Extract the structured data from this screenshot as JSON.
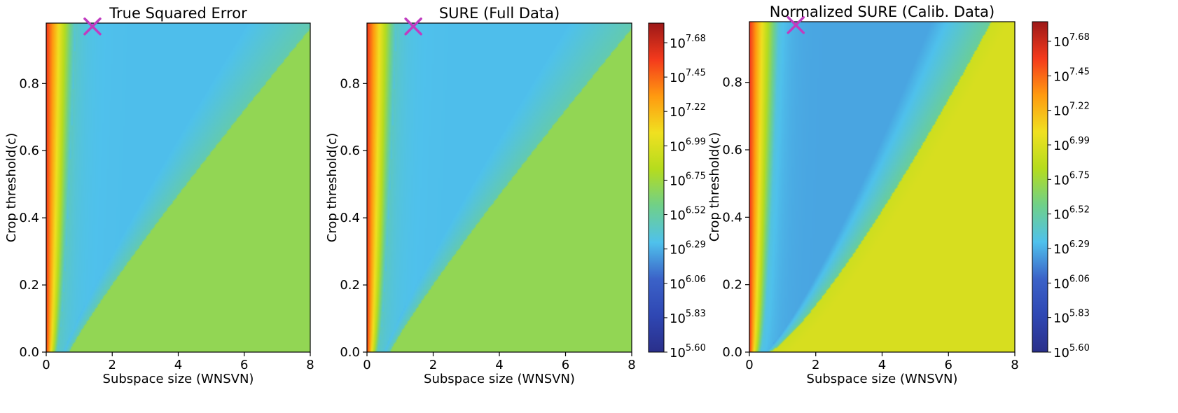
{
  "chart_data": [
    {
      "type": "heatmap",
      "title": "True Squared Error",
      "xlabel": "Subspace size (WNSVN)",
      "ylabel": "Crop threshold(c)",
      "xlim": [
        0,
        8
      ],
      "ylim": [
        0,
        0.98
      ],
      "x_ticks": [
        "0",
        "2",
        "4",
        "6",
        "8"
      ],
      "y_ticks": [
        "0.0",
        "0.2",
        "0.4",
        "0.6",
        "0.8"
      ],
      "colorbar": false,
      "marker": {
        "symbol": "x",
        "x": 1.4,
        "y": 0.97,
        "color": "#c03cc0"
      },
      "field": {
        "red_edge": 0.9,
        "blue_band": 0.33,
        "ridge_base": 0.7,
        "ridge_exp": 1.1,
        "ridge_end": 8.3,
        "far_level": 0.5,
        "far_cap": 0.5
      }
    },
    {
      "type": "heatmap",
      "title": "SURE (Full Data)",
      "xlabel": "Subspace size (WNSVN)",
      "ylabel": "Crop threshold(c)",
      "xlim": [
        0,
        8
      ],
      "ylim": [
        0,
        0.98
      ],
      "x_ticks": [
        "0",
        "2",
        "4",
        "6",
        "8"
      ],
      "y_ticks": [
        "0.0",
        "0.2",
        "0.4",
        "0.6",
        "0.8"
      ],
      "colorbar": true,
      "marker": {
        "symbol": "x",
        "x": 1.4,
        "y": 0.97,
        "color": "#c03cc0"
      },
      "field": {
        "red_edge": 0.9,
        "blue_band": 0.33,
        "ridge_base": 0.7,
        "ridge_exp": 1.1,
        "ridge_end": 8.3,
        "far_level": 0.5,
        "far_cap": 0.5
      }
    },
    {
      "type": "heatmap",
      "title": "Normalized SURE (Calib. Data)",
      "xlabel": "Subspace size (WNSVN)",
      "ylabel": "Crop threshold(c)",
      "xlim": [
        0,
        8
      ],
      "ylim": [
        0,
        0.98
      ],
      "x_ticks": [
        "0",
        "2",
        "4",
        "6",
        "8"
      ],
      "y_ticks": [
        "0.0",
        "0.2",
        "0.4",
        "0.6",
        "0.8"
      ],
      "colorbar": true,
      "marker": {
        "symbol": "x",
        "x": 1.4,
        "y": 0.97,
        "color": "#c03cc0"
      },
      "field": {
        "red_edge": 0.9,
        "blue_band": 0.3,
        "ridge_base": 0.6,
        "ridge_exp": 0.8,
        "ridge_end": 7.4,
        "far_level": 0.6,
        "far_cap": 0.62
      }
    }
  ],
  "colorbar": {
    "scale": "log",
    "ticks": [
      {
        "exp": "5.60",
        "frac": 0.0
      },
      {
        "exp": "5.83",
        "frac": 0.1111
      },
      {
        "exp": "6.06",
        "frac": 0.2222
      },
      {
        "exp": "6.29",
        "frac": 0.3333
      },
      {
        "exp": "6.52",
        "frac": 0.4444
      },
      {
        "exp": "6.75",
        "frac": 0.5556
      },
      {
        "exp": "6.99",
        "frac": 0.6667
      },
      {
        "exp": "7.22",
        "frac": 0.7778
      },
      {
        "exp": "7.45",
        "frac": 0.8889
      },
      {
        "exp": "7.68",
        "frac": 1.0
      }
    ],
    "base": "10"
  },
  "colormap": [
    "#2a2f8a",
    "#2f47b3",
    "#3b62c8",
    "#4fc1ec",
    "#6fd08a",
    "#b5dc1e",
    "#f0e020",
    "#ff9a10",
    "#f43a1c",
    "#9c1818"
  ]
}
